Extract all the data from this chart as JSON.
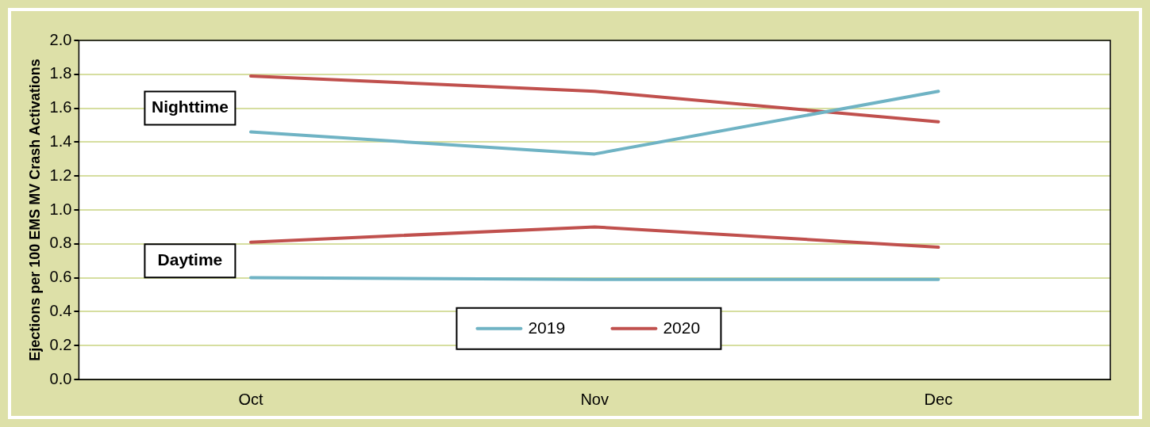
{
  "chart_data": {
    "type": "line",
    "ylabel": "Ejections per 100 EMS MV Crash Activations",
    "categories": [
      "Oct",
      "Nov",
      "Dec"
    ],
    "series": [
      {
        "name": "2019",
        "color": "#6fb3c4",
        "values": [
          1.46,
          1.33,
          1.7
        ]
      },
      {
        "name": "2020",
        "color": "#c0504d",
        "values": [
          1.79,
          1.7,
          1.52
        ]
      },
      {
        "color": "#c0504d",
        "values": [
          0.81,
          0.9,
          0.78
        ]
      },
      {
        "color": "#6fb3c4",
        "values": [
          0.6,
          0.59,
          0.59
        ]
      }
    ],
    "ylim": [
      0,
      2
    ],
    "yticks": [
      {
        "value": 0,
        "label": "0.0"
      },
      0.2,
      0.4,
      0.6,
      0.8,
      {
        "value": 1,
        "label": "1.0"
      },
      1.2,
      1.4,
      1.6,
      1.8,
      {
        "value": 2,
        "label": "2.0"
      }
    ],
    "grid": "y",
    "legend": "bottom",
    "marker": "none",
    "line_style": "solid",
    "annotations": [
      "Nighttime",
      "Daytime"
    ]
  }
}
